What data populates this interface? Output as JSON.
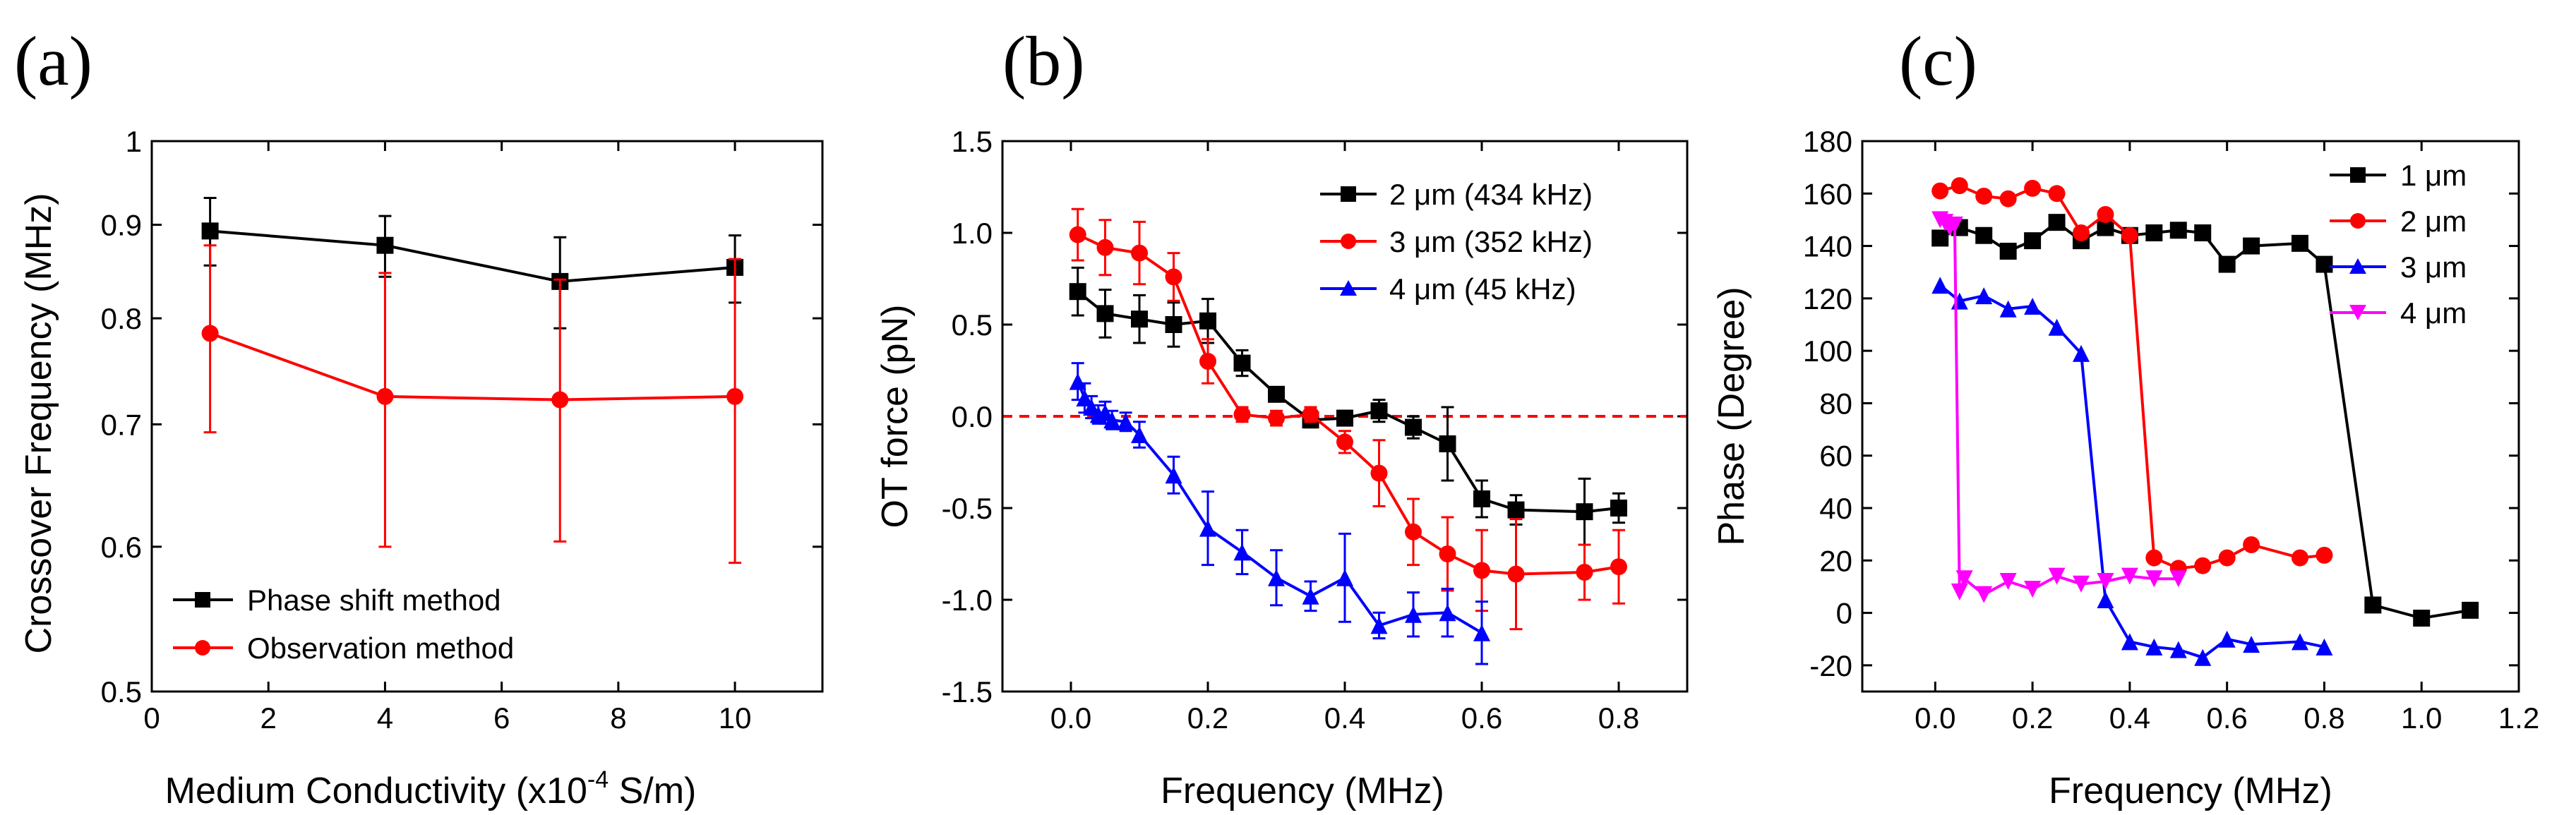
{
  "chart_data": [
    {
      "type": "line",
      "panel_label": "(a)",
      "xlabel": "Medium Conductivity (x10",
      "xlabel_sup": "-4",
      "xlabel_suffix": " S/m)",
      "ylabel": "Crossover Frequency (MHz)",
      "xlim": [
        0,
        11.5
      ],
      "ylim": [
        0.5,
        1.0
      ],
      "y_scale": "log",
      "xticks": [
        0,
        2,
        4,
        6,
        8,
        10
      ],
      "yticks": [
        0.5,
        0.6,
        0.7,
        0.8,
        0.9,
        1.0
      ],
      "ytick_labels": [
        "0.5",
        "0.6",
        "0.7",
        "0.8",
        "0.9",
        "1"
      ],
      "legend_position": "bottom-left",
      "series": [
        {
          "name": "Phase shift method",
          "color": "#000000",
          "marker": "square",
          "x": [
            1,
            4,
            7,
            10
          ],
          "y": [
            0.893,
            0.877,
            0.838,
            0.853
          ],
          "err_low": [
            0.038,
            0.034,
            0.048,
            0.037
          ],
          "err_high": [
            0.038,
            0.033,
            0.048,
            0.035
          ]
        },
        {
          "name": "Observation method",
          "color": "#ff0000",
          "marker": "circle",
          "x": [
            1,
            4,
            7,
            10
          ],
          "y": [
            0.785,
            0.725,
            0.722,
            0.725
          ],
          "err_low": [
            0.092,
            0.125,
            0.118,
            0.137
          ],
          "err_high": [
            0.092,
            0.122,
            0.118,
            0.137
          ]
        }
      ]
    },
    {
      "type": "line",
      "panel_label": "(b)",
      "xlabel": "Frequency (MHz)",
      "ylabel": "OT force (pN)",
      "xlim": [
        -0.1,
        0.9
      ],
      "ylim": [
        -1.5,
        1.5
      ],
      "xticks": [
        0.0,
        0.2,
        0.4,
        0.6,
        0.8
      ],
      "xtick_labels": [
        "0.0",
        "0.2",
        "0.4",
        "0.6",
        "0.8"
      ],
      "yticks": [
        -1.5,
        -1.0,
        -0.5,
        0.0,
        0.5,
        1.0,
        1.5
      ],
      "ytick_labels": [
        "-1.5",
        "-1.0",
        "-0.5",
        "0.0",
        "0.5",
        "1.0",
        "1.5"
      ],
      "reference_line": {
        "y": 0.0,
        "color": "#ff0000",
        "style": "dashed"
      },
      "legend_position": "top-right",
      "series": [
        {
          "name": "2 μm (434 kHz)",
          "color": "#000000",
          "marker": "square",
          "x": [
            0.01,
            0.05,
            0.1,
            0.15,
            0.2,
            0.25,
            0.3,
            0.35,
            0.4,
            0.45,
            0.5,
            0.55,
            0.6,
            0.65,
            0.75,
            0.8
          ],
          "y": [
            0.68,
            0.56,
            0.53,
            0.5,
            0.52,
            0.29,
            0.12,
            -0.02,
            -0.01,
            0.03,
            -0.06,
            -0.15,
            -0.45,
            -0.51,
            -0.52,
            -0.5
          ],
          "err": [
            0.13,
            0.13,
            0.13,
            0.12,
            0.12,
            0.07,
            0.03,
            0.04,
            0.04,
            0.06,
            0.06,
            0.2,
            0.1,
            0.08,
            0.18,
            0.08
          ]
        },
        {
          "name": "3 μm (352 kHz)",
          "color": "#ff0000",
          "marker": "circle",
          "x": [
            0.01,
            0.05,
            0.1,
            0.15,
            0.2,
            0.25,
            0.3,
            0.35,
            0.4,
            0.45,
            0.5,
            0.55,
            0.6,
            0.65,
            0.75,
            0.8
          ],
          "y": [
            0.99,
            0.92,
            0.89,
            0.76,
            0.3,
            0.01,
            -0.01,
            0.01,
            -0.14,
            -0.31,
            -0.63,
            -0.75,
            -0.84,
            -0.86,
            -0.85,
            -0.82
          ],
          "err": [
            0.14,
            0.15,
            0.17,
            0.13,
            0.12,
            0.04,
            0.04,
            0.04,
            0.06,
            0.18,
            0.18,
            0.2,
            0.22,
            0.3,
            0.15,
            0.2
          ]
        },
        {
          "name": "4 μm (45 kHz)",
          "color": "#0000ff",
          "marker": "triangle",
          "x": [
            0.01,
            0.02,
            0.03,
            0.04,
            0.05,
            0.06,
            0.08,
            0.1,
            0.15,
            0.2,
            0.25,
            0.3,
            0.35,
            0.4,
            0.45,
            0.5,
            0.55,
            0.6
          ],
          "y": [
            0.19,
            0.1,
            0.05,
            0.01,
            0.02,
            -0.02,
            -0.03,
            -0.1,
            -0.32,
            -0.61,
            -0.74,
            -0.88,
            -0.98,
            -0.88,
            -1.14,
            -1.08,
            -1.07,
            -1.18
          ],
          "err": [
            0.1,
            0.08,
            0.06,
            0.05,
            0.06,
            0.05,
            0.05,
            0.07,
            0.1,
            0.2,
            0.12,
            0.15,
            0.08,
            0.24,
            0.07,
            0.12,
            0.13,
            0.17
          ]
        }
      ]
    },
    {
      "type": "line",
      "panel_label": "(c)",
      "xlabel": "Frequency (MHz)",
      "ylabel": "Phase (Degree)",
      "xlim": [
        -0.15,
        1.2
      ],
      "ylim": [
        -30,
        180
      ],
      "xticks": [
        0.0,
        0.2,
        0.4,
        0.6,
        0.8,
        1.0,
        1.2
      ],
      "xtick_labels": [
        "0.0",
        "0.2",
        "0.4",
        "0.6",
        "0.8",
        "1.0",
        "1.2"
      ],
      "yticks": [
        -20,
        0,
        20,
        40,
        60,
        80,
        100,
        120,
        140,
        160,
        180
      ],
      "ytick_labels": [
        "-20",
        "0",
        "20",
        "40",
        "60",
        "80",
        "100",
        "120",
        "140",
        "160",
        "180"
      ],
      "legend_position": "top-right",
      "series": [
        {
          "name": "1 μm",
          "color": "#000000",
          "marker": "square",
          "x": [
            0.01,
            0.05,
            0.1,
            0.15,
            0.2,
            0.25,
            0.3,
            0.35,
            0.4,
            0.45,
            0.5,
            0.55,
            0.6,
            0.65,
            0.75,
            0.8,
            0.9,
            1.0,
            1.1
          ],
          "y": [
            143,
            147,
            144,
            138,
            142,
            149,
            142,
            147,
            144,
            145,
            146,
            145,
            133,
            140,
            141,
            133,
            3,
            -2,
            1
          ]
        },
        {
          "name": "2 μm",
          "color": "#ff0000",
          "marker": "circle",
          "x": [
            0.01,
            0.05,
            0.1,
            0.15,
            0.2,
            0.25,
            0.3,
            0.35,
            0.4,
            0.45,
            0.5,
            0.55,
            0.6,
            0.65,
            0.75,
            0.8
          ],
          "y": [
            161,
            163,
            159,
            158,
            162,
            160,
            145,
            152,
            144,
            21,
            17,
            18,
            21,
            26,
            21,
            22
          ]
        },
        {
          "name": "3 μm",
          "color": "#0000ff",
          "marker": "triangle",
          "x": [
            0.01,
            0.05,
            0.1,
            0.15,
            0.2,
            0.25,
            0.3,
            0.35,
            0.4,
            0.45,
            0.5,
            0.55,
            0.6,
            0.65,
            0.75,
            0.8
          ],
          "y": [
            125,
            119,
            121,
            116,
            117,
            109,
            99,
            5,
            -11,
            -13,
            -14,
            -17,
            -10,
            -12,
            -11,
            -13
          ]
        },
        {
          "name": "4 μm",
          "color": "#ff00ff",
          "marker": "triangle-down",
          "x": [
            0.01,
            0.02,
            0.03,
            0.04,
            0.05,
            0.06,
            0.1,
            0.15,
            0.2,
            0.25,
            0.3,
            0.35,
            0.4,
            0.45,
            0.5
          ],
          "y": [
            150,
            149,
            147,
            148,
            8,
            13,
            7,
            12,
            9,
            14,
            11,
            12,
            14,
            13,
            13
          ]
        }
      ]
    }
  ]
}
